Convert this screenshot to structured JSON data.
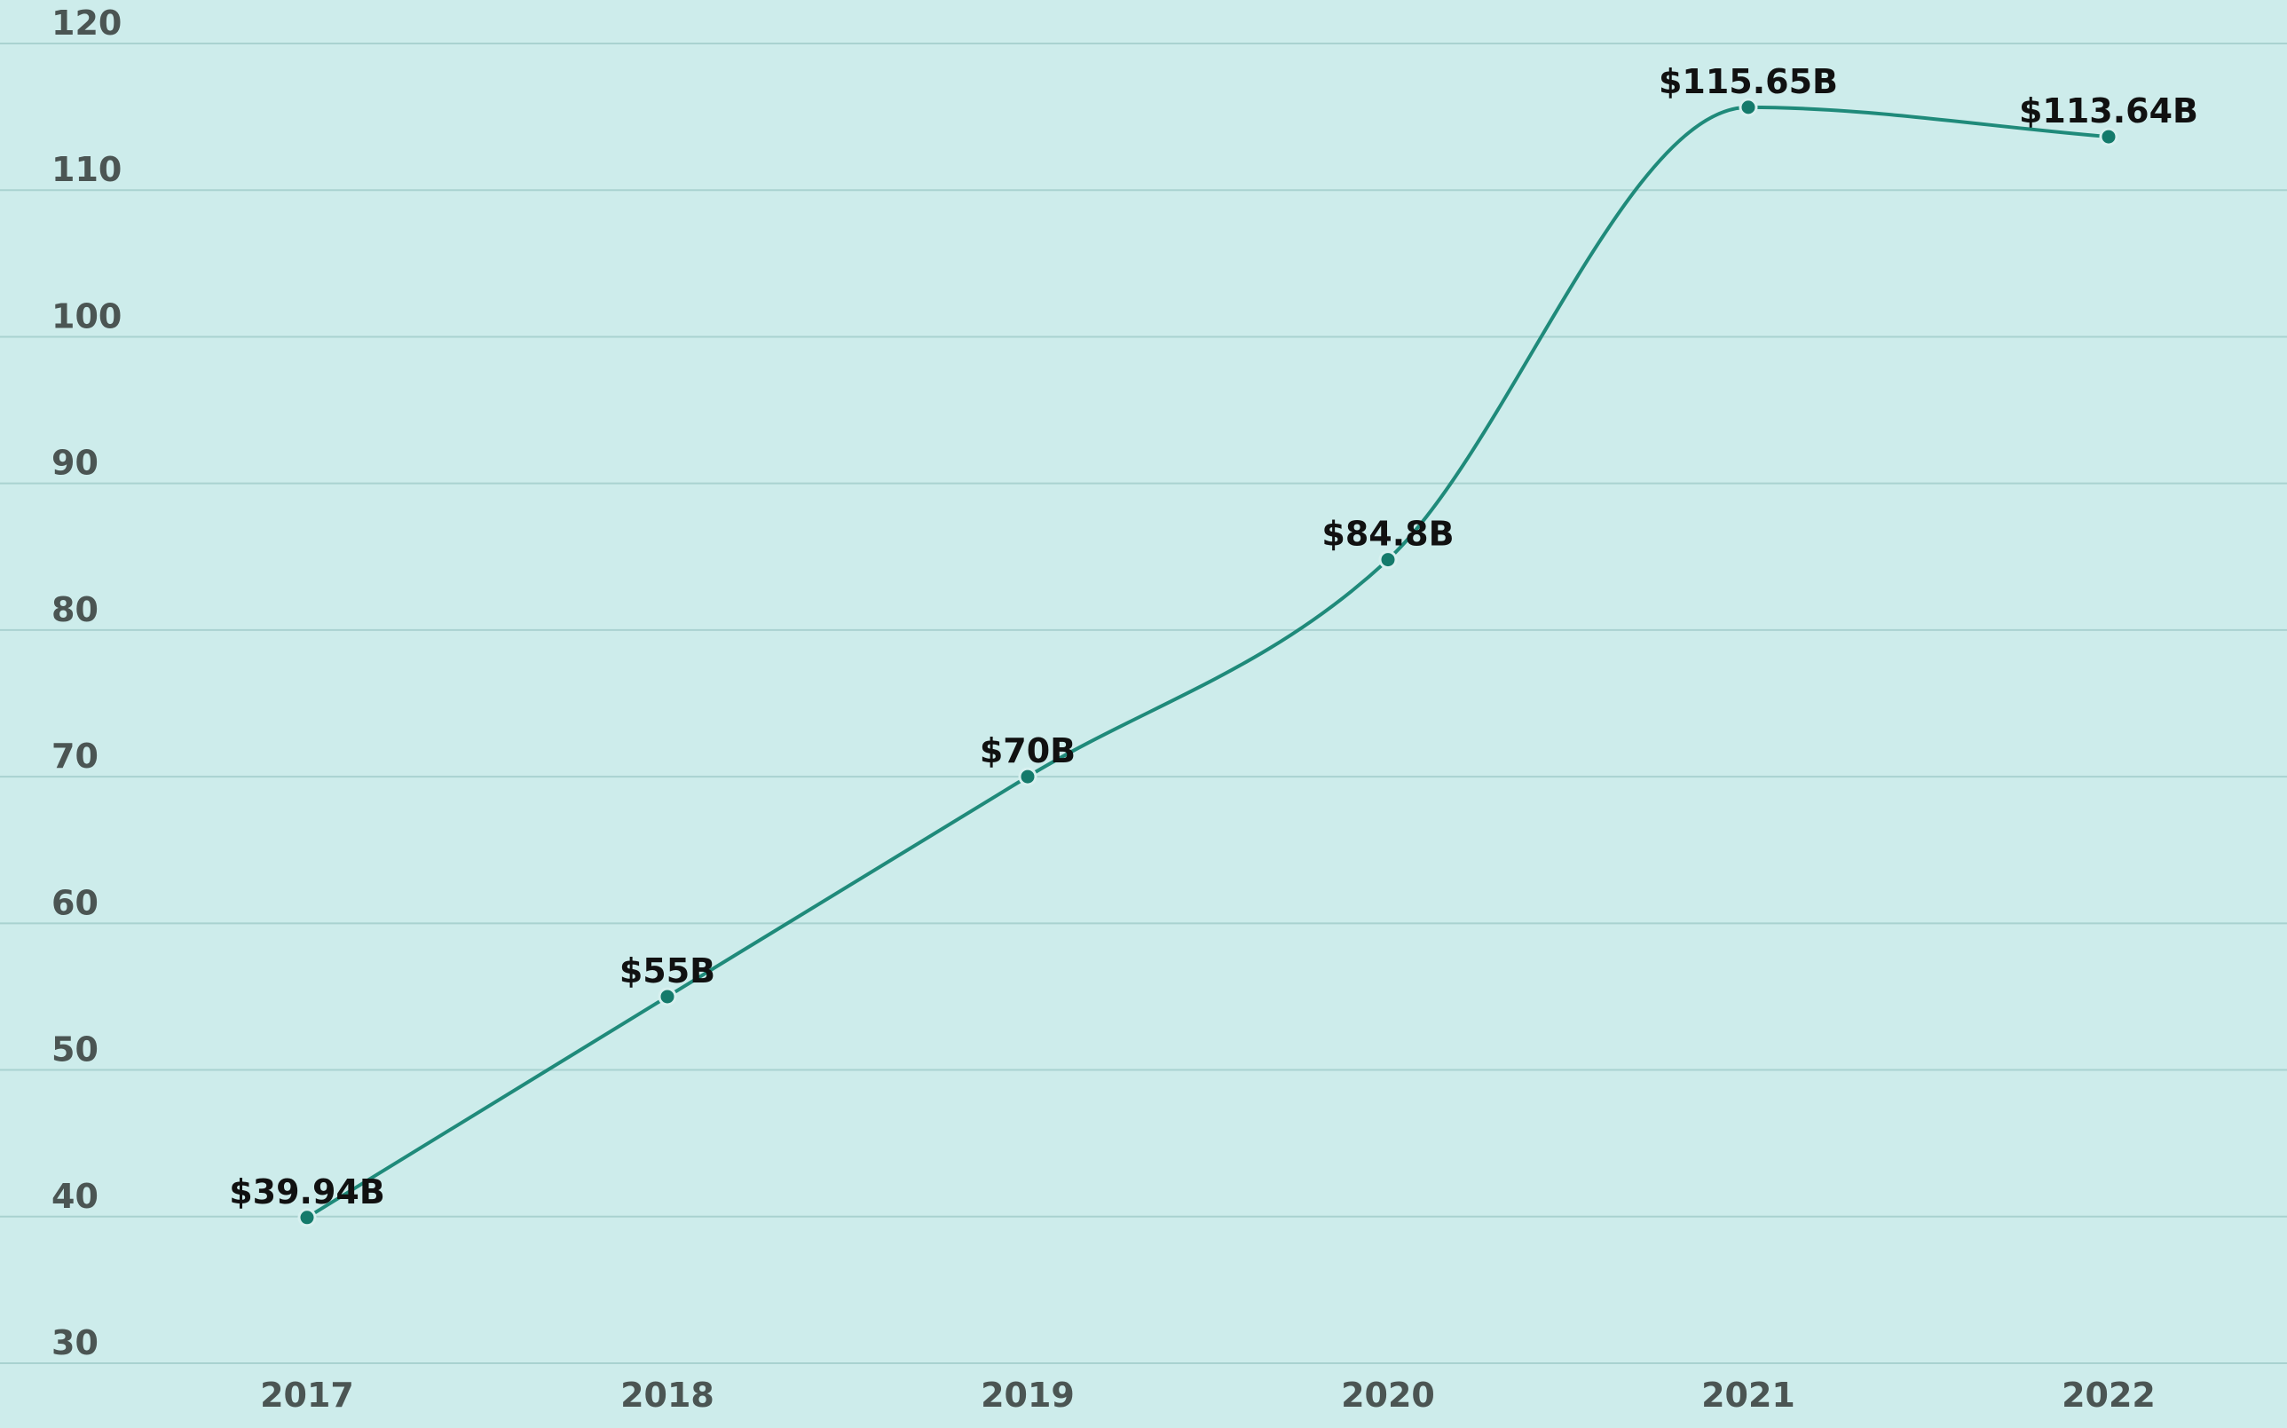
{
  "chart_data": {
    "type": "line",
    "x": [
      "2017",
      "2018",
      "2019",
      "2020",
      "2021",
      "2022"
    ],
    "series": [
      {
        "values": [
          39.94,
          55,
          70,
          84.8,
          115.65,
          113.64
        ],
        "labels": [
          "$39.94B",
          "$55B",
          "$70B",
          "$84.8B",
          "$115.65B",
          "$113.64B"
        ]
      }
    ],
    "yticks": [
      30,
      40,
      50,
      60,
      70,
      80,
      90,
      100,
      110,
      120
    ],
    "ylim": [
      30,
      120
    ],
    "grid": true,
    "smooth": true,
    "colors": {
      "background": "#cdeceb",
      "line": "#1f8a7a",
      "point": "#147a6b"
    }
  }
}
